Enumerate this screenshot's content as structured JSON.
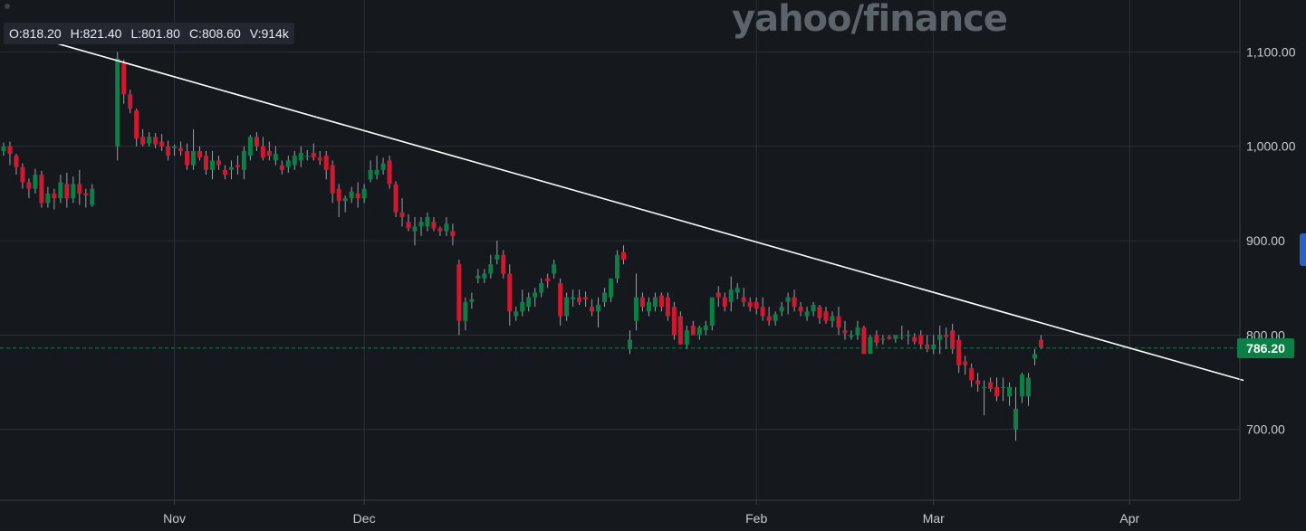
{
  "brand": "yahoo/finance",
  "ohlc": {
    "open": "O:818.20",
    "high": "H:821.40",
    "low": "L:801.80",
    "close": "C:808.60",
    "volume": "V:914k"
  },
  "last_price": "786.20",
  "colors": {
    "up": "#0b7f45",
    "down": "#d1182f",
    "trend": "#ffffff",
    "grid": "#2b3038",
    "bg": "#15181d",
    "axis_text": "#c7ccd3"
  },
  "chart_data": {
    "type": "candlestick",
    "y_axis": {
      "ticks": [
        700,
        800,
        900,
        1000,
        1100
      ],
      "tick_labels": [
        "700.00",
        "800.00",
        "900.00",
        "1,000.00",
        "1,100.00"
      ],
      "range": [
        625,
        1155
      ],
      "side": "right"
    },
    "x_axis": {
      "labels": [
        {
          "text": "Nov",
          "day": 27
        },
        {
          "text": "Dec",
          "day": 57
        },
        {
          "text": "Feb",
          "day": 119
        },
        {
          "text": "Mar",
          "day": 147
        },
        {
          "text": "Apr",
          "day": 178
        }
      ],
      "range": [
        0,
        196
      ]
    },
    "current_price_line": 786.2,
    "trendline": [
      {
        "day": 0,
        "value": 1125
      },
      {
        "day": 196,
        "value": 752
      }
    ],
    "candles": [
      [
        0,
        995,
        1004,
        990,
        1000
      ],
      [
        1,
        1000,
        1005,
        980,
        992
      ],
      [
        2,
        990,
        992,
        970,
        978
      ],
      [
        3,
        978,
        982,
        955,
        962
      ],
      [
        4,
        962,
        966,
        945,
        955
      ],
      [
        5,
        955,
        976,
        950,
        970
      ],
      [
        6,
        970,
        974,
        935,
        940
      ],
      [
        7,
        940,
        957,
        935,
        950
      ],
      [
        8,
        950,
        955,
        933,
        945
      ],
      [
        9,
        945,
        970,
        940,
        962
      ],
      [
        10,
        960,
        972,
        935,
        945
      ],
      [
        11,
        945,
        968,
        940,
        960
      ],
      [
        12,
        960,
        975,
        938,
        950
      ],
      [
        13,
        950,
        955,
        935,
        948
      ],
      [
        14,
        938,
        960,
        936,
        955
      ],
      [
        18,
        1000,
        1100,
        985,
        1093
      ],
      [
        19,
        1088,
        1092,
        1045,
        1055
      ],
      [
        20,
        1055,
        1060,
        1035,
        1040
      ],
      [
        21,
        1038,
        1040,
        1000,
        1008
      ],
      [
        22,
        1010,
        1018,
        1000,
        1002
      ],
      [
        23,
        1003,
        1015,
        1000,
        1010
      ],
      [
        24,
        1010,
        1014,
        998,
        1002
      ],
      [
        25,
        1005,
        1013,
        995,
        1000
      ],
      [
        26,
        1000,
        1006,
        985,
        990
      ],
      [
        27,
        998,
        1002,
        990,
        1000
      ],
      [
        28,
        998,
        1005,
        990,
        995
      ],
      [
        29,
        995,
        1003,
        975,
        980
      ],
      [
        30,
        980,
        1018,
        975,
        995
      ],
      [
        31,
        995,
        1000,
        985,
        988
      ],
      [
        32,
        990,
        995,
        970,
        975
      ],
      [
        33,
        975,
        995,
        965,
        985
      ],
      [
        34,
        985,
        990,
        975,
        980
      ],
      [
        35,
        975,
        980,
        965,
        970
      ],
      [
        36,
        975,
        985,
        965,
        978
      ],
      [
        37,
        980,
        990,
        970,
        978
      ],
      [
        38,
        975,
        1000,
        965,
        995
      ],
      [
        39,
        990,
        1012,
        985,
        1010
      ],
      [
        40,
        1010,
        1015,
        995,
        1000
      ],
      [
        41,
        1000,
        1010,
        985,
        988
      ],
      [
        42,
        995,
        1005,
        985,
        990
      ],
      [
        43,
        985,
        1000,
        980,
        992
      ],
      [
        44,
        980,
        985,
        970,
        975
      ],
      [
        45,
        978,
        990,
        972,
        985
      ],
      [
        46,
        980,
        995,
        975,
        990
      ],
      [
        47,
        985,
        1000,
        978,
        993
      ],
      [
        48,
        990,
        996,
        985,
        990
      ],
      [
        49,
        993,
        1003,
        985,
        988
      ],
      [
        50,
        988,
        995,
        980,
        985
      ],
      [
        51,
        990,
        995,
        965,
        975
      ],
      [
        52,
        980,
        985,
        940,
        950
      ],
      [
        53,
        955,
        960,
        925,
        942
      ],
      [
        54,
        942,
        948,
        930,
        945
      ],
      [
        55,
        945,
        957,
        940,
        952
      ],
      [
        56,
        950,
        962,
        935,
        945
      ],
      [
        57,
        945,
        960,
        940,
        955
      ],
      [
        58,
        965,
        985,
        962,
        975
      ],
      [
        59,
        970,
        990,
        965,
        975
      ],
      [
        60,
        975,
        988,
        970,
        982
      ],
      [
        61,
        985,
        990,
        955,
        960
      ],
      [
        62,
        960,
        963,
        925,
        930
      ],
      [
        63,
        930,
        945,
        915,
        925
      ],
      [
        64,
        920,
        928,
        910,
        913
      ],
      [
        65,
        910,
        925,
        895,
        915
      ],
      [
        66,
        915,
        925,
        905,
        920
      ],
      [
        67,
        915,
        930,
        910,
        925
      ],
      [
        68,
        920,
        925,
        910,
        913
      ],
      [
        69,
        913,
        915,
        905,
        910
      ],
      [
        70,
        910,
        925,
        905,
        918
      ],
      [
        71,
        910,
        918,
        895,
        905
      ],
      [
        72,
        875,
        880,
        800,
        815
      ],
      [
        73,
        815,
        840,
        805,
        835
      ],
      [
        74,
        835,
        845,
        828,
        838
      ],
      [
        75,
        860,
        870,
        855,
        863
      ],
      [
        76,
        860,
        870,
        855,
        865
      ],
      [
        77,
        865,
        885,
        860,
        875
      ],
      [
        78,
        880,
        900,
        875,
        885
      ],
      [
        79,
        885,
        890,
        860,
        865
      ],
      [
        80,
        865,
        875,
        810,
        825
      ],
      [
        81,
        820,
        830,
        815,
        825
      ],
      [
        82,
        825,
        848,
        820,
        835
      ],
      [
        83,
        830,
        845,
        825,
        840
      ],
      [
        84,
        840,
        850,
        830,
        845
      ],
      [
        85,
        845,
        860,
        840,
        855
      ],
      [
        86,
        860,
        865,
        850,
        857
      ],
      [
        87,
        865,
        880,
        860,
        875
      ],
      [
        88,
        855,
        860,
        810,
        820
      ],
      [
        89,
        820,
        845,
        815,
        840
      ],
      [
        90,
        838,
        848,
        830,
        840
      ],
      [
        91,
        840,
        848,
        832,
        835
      ],
      [
        92,
        840,
        846,
        830,
        838
      ],
      [
        93,
        830,
        838,
        820,
        825
      ],
      [
        94,
        825,
        840,
        808,
        832
      ],
      [
        95,
        835,
        850,
        830,
        845
      ],
      [
        96,
        840,
        860,
        835,
        860
      ],
      [
        97,
        860,
        890,
        855,
        885
      ],
      [
        98,
        888,
        895,
        875,
        880
      ],
      [
        99,
        785,
        805,
        780,
        795
      ],
      [
        100,
        815,
        865,
        805,
        840
      ],
      [
        101,
        840,
        845,
        825,
        830
      ],
      [
        102,
        825,
        840,
        820,
        835
      ],
      [
        103,
        830,
        845,
        825,
        840
      ],
      [
        104,
        842,
        845,
        825,
        830
      ],
      [
        105,
        840,
        845,
        815,
        820
      ],
      [
        106,
        830,
        835,
        795,
        800
      ],
      [
        107,
        820,
        825,
        790,
        790
      ],
      [
        108,
        790,
        810,
        785,
        805
      ],
      [
        109,
        810,
        815,
        800,
        800
      ],
      [
        110,
        800,
        810,
        795,
        808
      ],
      [
        111,
        805,
        815,
        800,
        810
      ],
      [
        112,
        810,
        835,
        805,
        840
      ],
      [
        113,
        845,
        852,
        830,
        840
      ],
      [
        114,
        840,
        845,
        825,
        830
      ],
      [
        115,
        835,
        862,
        825,
        848
      ],
      [
        116,
        845,
        855,
        838,
        850
      ],
      [
        117,
        840,
        850,
        830,
        835
      ],
      [
        118,
        835,
        840,
        825,
        830
      ],
      [
        119,
        835,
        840,
        822,
        828
      ],
      [
        120,
        830,
        840,
        815,
        820
      ],
      [
        121,
        820,
        830,
        810,
        815
      ],
      [
        122,
        815,
        825,
        810,
        822
      ],
      [
        123,
        825,
        835,
        820,
        830
      ],
      [
        124,
        835,
        845,
        822,
        840
      ],
      [
        125,
        840,
        848,
        825,
        830
      ],
      [
        126,
        830,
        835,
        820,
        825
      ],
      [
        127,
        820,
        830,
        815,
        825
      ],
      [
        128,
        825,
        835,
        820,
        832
      ],
      [
        129,
        830,
        832,
        812,
        818
      ],
      [
        130,
        825,
        830,
        812,
        815
      ],
      [
        131,
        815,
        825,
        808,
        820
      ],
      [
        132,
        820,
        830,
        800,
        808
      ],
      [
        133,
        805,
        815,
        795,
        802
      ],
      [
        134,
        798,
        805,
        795,
        800
      ],
      [
        135,
        800,
        815,
        795,
        808
      ],
      [
        136,
        808,
        810,
        780,
        780
      ],
      [
        137,
        780,
        800,
        780,
        798
      ],
      [
        138,
        800,
        805,
        788,
        792
      ],
      [
        139,
        795,
        800,
        790,
        796
      ],
      [
        140,
        798,
        800,
        795,
        796
      ],
      [
        141,
        796,
        800,
        792,
        800
      ],
      [
        142,
        798,
        810,
        795,
        798
      ],
      [
        143,
        800,
        805,
        790,
        800
      ],
      [
        144,
        798,
        802,
        790,
        793
      ],
      [
        145,
        800,
        805,
        785,
        790
      ],
      [
        146,
        790,
        800,
        782,
        785
      ],
      [
        147,
        785,
        800,
        780,
        790
      ],
      [
        148,
        795,
        810,
        780,
        800
      ],
      [
        149,
        800,
        808,
        785,
        798
      ],
      [
        150,
        805,
        812,
        780,
        785
      ],
      [
        151,
        795,
        800,
        760,
        768
      ],
      [
        152,
        772,
        778,
        758,
        768
      ],
      [
        153,
        765,
        770,
        745,
        752
      ],
      [
        154,
        752,
        760,
        740,
        748
      ],
      [
        155,
        745,
        752,
        715,
        745
      ],
      [
        156,
        750,
        755,
        740,
        743
      ],
      [
        157,
        745,
        755,
        730,
        735
      ],
      [
        158,
        745,
        755,
        730,
        745
      ],
      [
        159,
        735,
        750,
        725,
        745
      ],
      [
        160,
        700,
        745,
        688,
        722
      ],
      [
        161,
        735,
        760,
        728,
        758
      ],
      [
        162,
        735,
        760,
        725,
        755
      ],
      [
        163,
        775,
        785,
        768,
        780
      ],
      [
        164,
        795,
        800,
        785,
        787
      ]
    ]
  }
}
